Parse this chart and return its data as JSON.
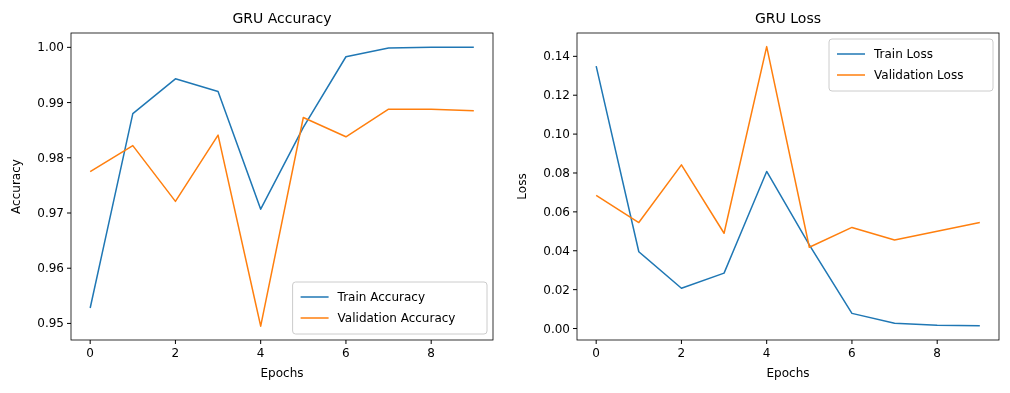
{
  "chart_data": [
    {
      "type": "line",
      "title": "GRU Accuracy",
      "xlabel": "Epochs",
      "ylabel": "Accuracy",
      "x": [
        0,
        1,
        2,
        3,
        4,
        5,
        6,
        7,
        8,
        9
      ],
      "series": [
        {
          "name": "Train Accuracy",
          "color": "#1f77b4",
          "values": [
            0.9528,
            0.988,
            0.9943,
            0.992,
            0.9707,
            0.9855,
            0.9983,
            0.9999,
            1.0,
            1.0
          ]
        },
        {
          "name": "Validation Accuracy",
          "color": "#ff7f0e",
          "values": [
            0.9775,
            0.9822,
            0.9721,
            0.9841,
            0.9495,
            0.9873,
            0.9838,
            0.9888,
            0.9888,
            0.9885
          ]
        }
      ],
      "xlim": [
        -0.45,
        9.45
      ],
      "xticks": [
        0,
        2,
        4,
        6,
        8
      ],
      "ylim": [
        0.947,
        1.0026
      ],
      "yticks": [
        {
          "value": 0.95,
          "label": "0.95"
        },
        {
          "value": 0.96,
          "label": "0.96"
        },
        {
          "value": 0.97,
          "label": "0.97"
        },
        {
          "value": 0.98,
          "label": "0.98"
        },
        {
          "value": 0.99,
          "label": "0.99"
        },
        {
          "value": 1.0,
          "label": "1.00"
        }
      ],
      "legend": "bottom right",
      "grid": false
    },
    {
      "type": "line",
      "title": "GRU Loss",
      "xlabel": "Epochs",
      "ylabel": "Loss",
      "x": [
        0,
        1,
        2,
        3,
        4,
        5,
        6,
        7,
        8,
        9
      ],
      "series": [
        {
          "name": "Train Loss",
          "color": "#1f77b4",
          "values": [
            0.135,
            0.0395,
            0.0207,
            0.0285,
            0.0808,
            0.043,
            0.0078,
            0.0027,
            0.0017,
            0.0014
          ]
        },
        {
          "name": "Validation Loss",
          "color": "#ff7f0e",
          "values": [
            0.0685,
            0.0545,
            0.0842,
            0.049,
            0.145,
            0.0418,
            0.052,
            0.0455,
            0.05,
            0.0545
          ]
        }
      ],
      "xlim": [
        -0.45,
        9.45
      ],
      "xticks": [
        0,
        2,
        4,
        6,
        8
      ],
      "ylim": [
        -0.0059,
        0.152
      ],
      "yticks": [
        {
          "value": 0,
          "label": "0.00"
        },
        {
          "value": 0.02,
          "label": "0.02"
        },
        {
          "value": 0.04,
          "label": "0.04"
        },
        {
          "value": 0.06,
          "label": "0.06"
        },
        {
          "value": 0.08,
          "label": "0.08"
        },
        {
          "value": 0.1,
          "label": "0.10"
        },
        {
          "value": 0.12,
          "label": "0.12"
        },
        {
          "value": 0.14,
          "label": "0.14"
        }
      ],
      "legend": "top right",
      "grid": false
    }
  ]
}
